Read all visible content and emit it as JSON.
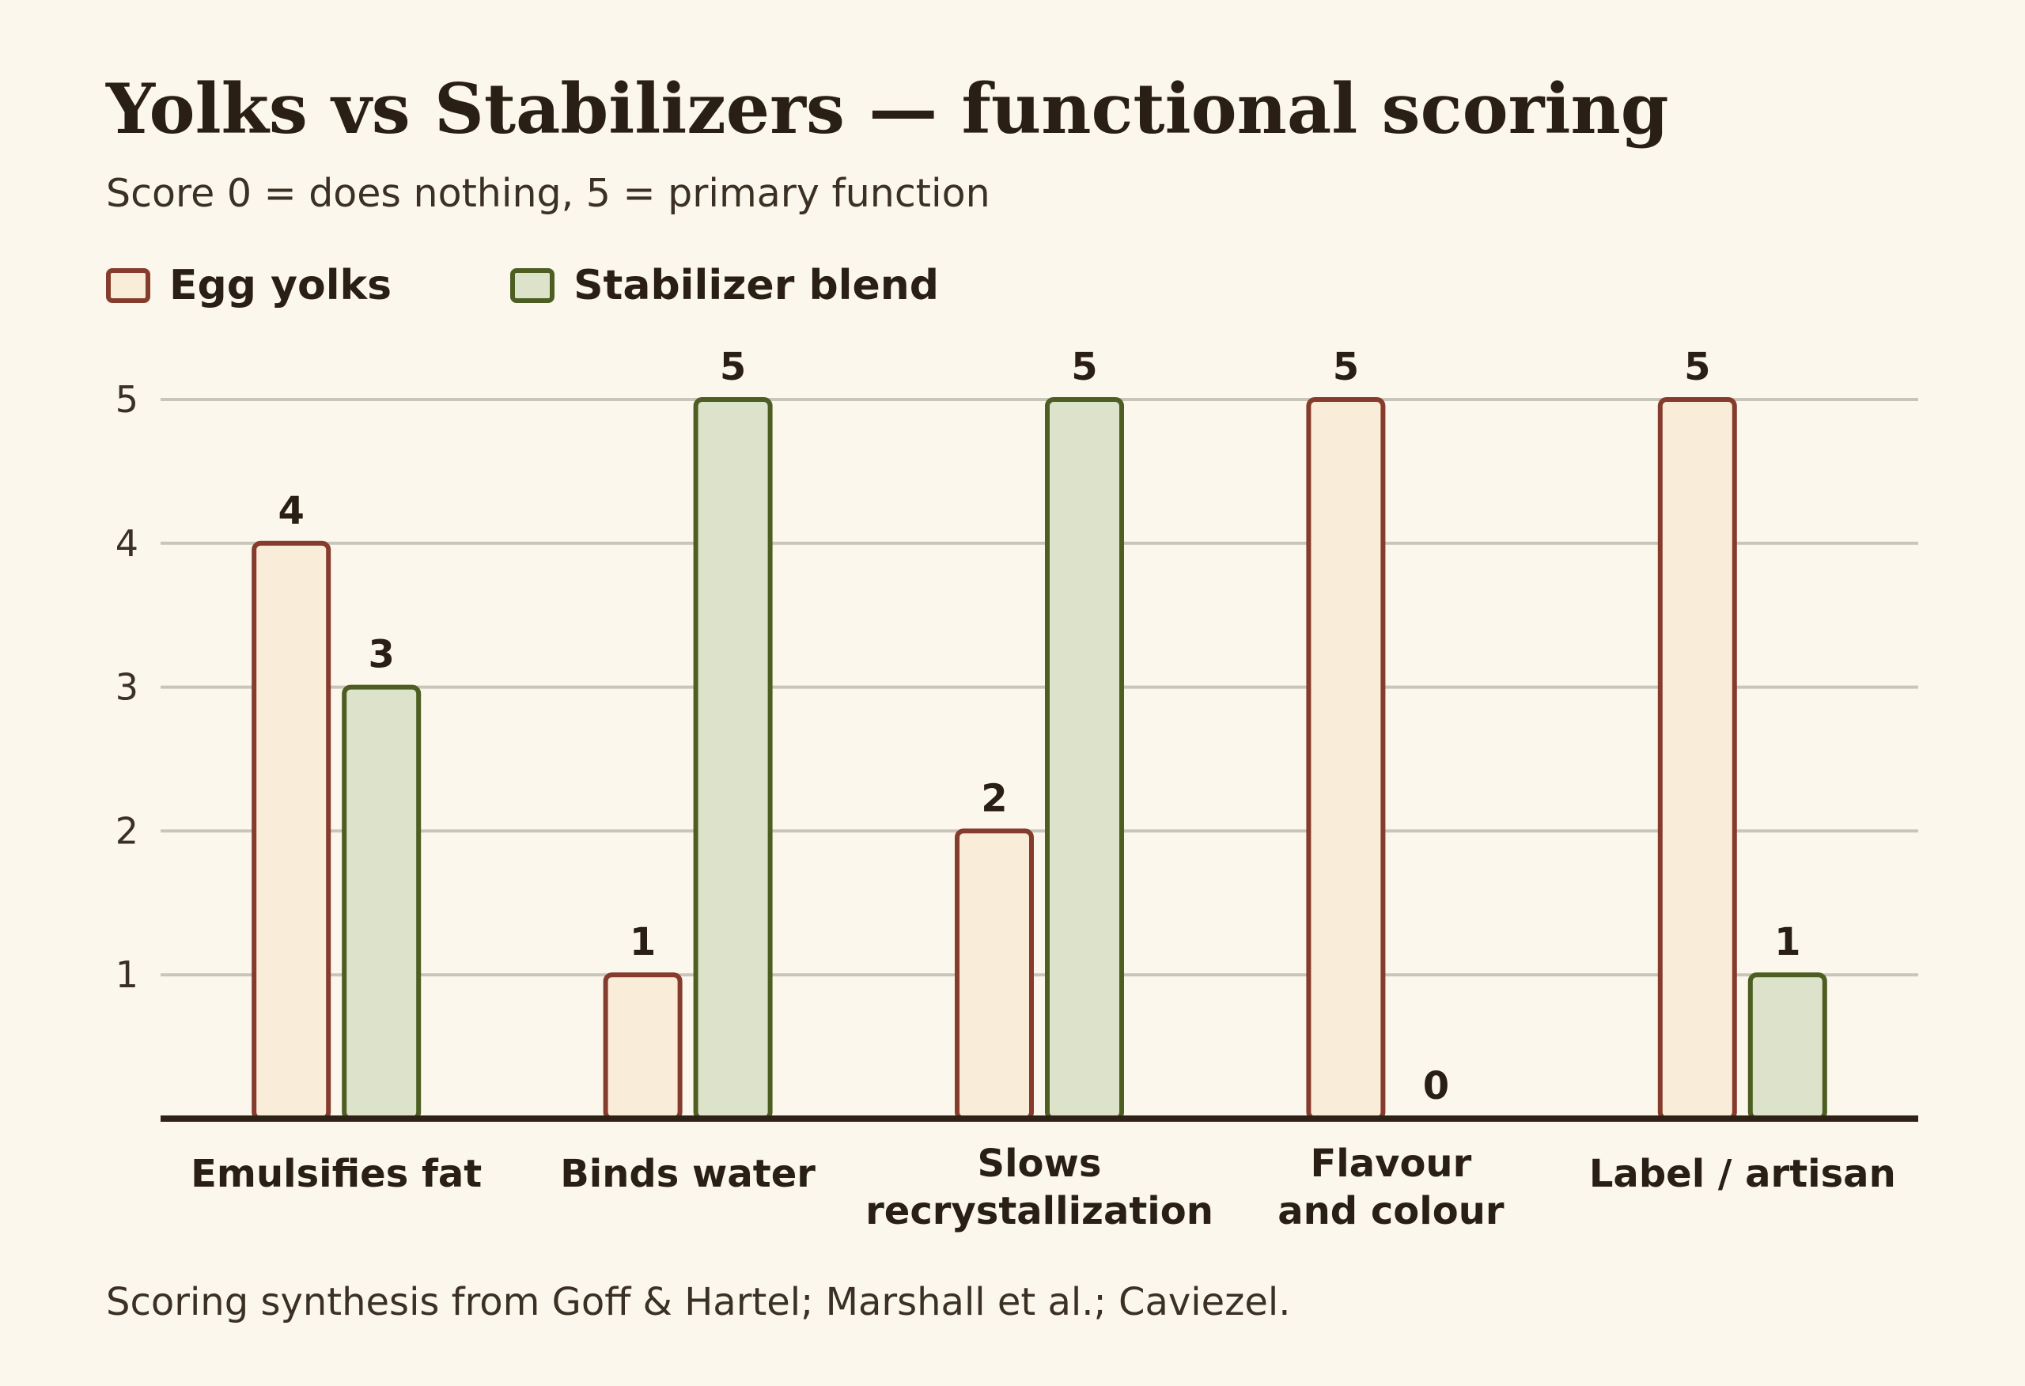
{
  "title": "Yolks vs Stabilizers — functional scoring",
  "subtitle": "Score 0 = does nothing, 5 = primary function",
  "caption": "Scoring synthesis from Goff & Hartel; Marshall et al.; Caviezel.",
  "colors": {
    "background": "#fbf7ec",
    "yolk_fill": "#f9ecd8",
    "yolk_stroke": "#853c2d",
    "stab_fill": "#dde2ca",
    "stab_stroke": "#4c5e21",
    "grid": "#c9c5ba",
    "axis": "#2e2216"
  },
  "chart_data": {
    "type": "bar",
    "title": "Yolks vs Stabilizers — functional scoring",
    "categories": [
      [
        "Emulsifies fat"
      ],
      [
        "Binds water"
      ],
      [
        "Slows",
        "recrystallization"
      ],
      [
        "Flavour",
        "and colour"
      ],
      [
        "Label / artisan"
      ]
    ],
    "series": [
      {
        "name": "Egg yolks",
        "values": [
          4,
          1,
          2,
          5,
          5
        ]
      },
      {
        "name": "Stabilizer blend",
        "values": [
          3,
          5,
          5,
          0,
          1
        ]
      }
    ],
    "yticks": [
      1,
      2,
      3,
      4,
      5
    ],
    "ylim": [
      0,
      5
    ],
    "grid": true,
    "legend": "top-left"
  }
}
